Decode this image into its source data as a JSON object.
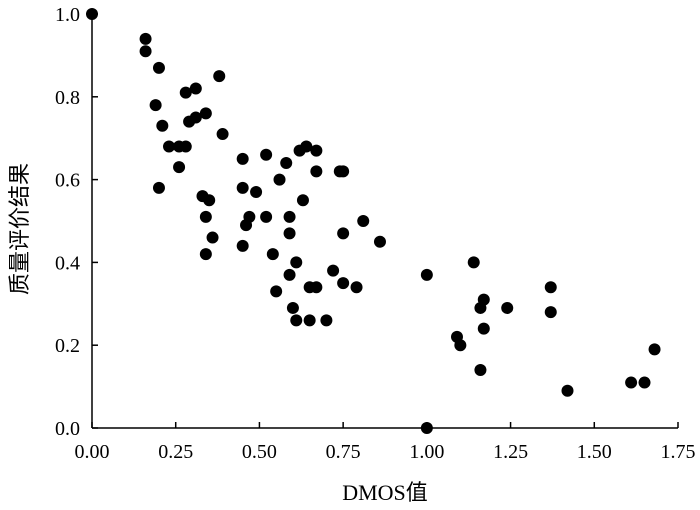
{
  "chart_data": {
    "type": "scatter",
    "title": "",
    "xlabel": "DMOS值",
    "ylabel": "质量评价结果",
    "xlim": [
      0,
      1.75
    ],
    "ylim": [
      0,
      1.0
    ],
    "xticks": [
      "0.00",
      "0.25",
      "0.50",
      "0.75",
      "1.00",
      "1.25",
      "1.50",
      "1.75"
    ],
    "yticks": [
      "0.0",
      "0.2",
      "0.4",
      "0.6",
      "0.8",
      "1.0"
    ],
    "grid": false,
    "marker_color": "#000000",
    "points": [
      [
        0.0,
        1.0
      ],
      [
        0.16,
        0.94
      ],
      [
        0.16,
        0.91
      ],
      [
        0.2,
        0.87
      ],
      [
        0.19,
        0.78
      ],
      [
        0.21,
        0.73
      ],
      [
        0.23,
        0.68
      ],
      [
        0.2,
        0.58
      ],
      [
        0.26,
        0.68
      ],
      [
        0.26,
        0.63
      ],
      [
        0.28,
        0.81
      ],
      [
        0.29,
        0.74
      ],
      [
        0.28,
        0.68
      ],
      [
        0.31,
        0.82
      ],
      [
        0.31,
        0.75
      ],
      [
        0.34,
        0.76
      ],
      [
        0.38,
        0.85
      ],
      [
        0.39,
        0.71
      ],
      [
        0.33,
        0.56
      ],
      [
        0.35,
        0.55
      ],
      [
        0.34,
        0.51
      ],
      [
        0.36,
        0.46
      ],
      [
        0.34,
        0.42
      ],
      [
        0.45,
        0.65
      ],
      [
        0.45,
        0.58
      ],
      [
        0.49,
        0.57
      ],
      [
        0.47,
        0.51
      ],
      [
        0.46,
        0.49
      ],
      [
        0.45,
        0.44
      ],
      [
        0.52,
        0.66
      ],
      [
        0.52,
        0.51
      ],
      [
        0.54,
        0.42
      ],
      [
        0.55,
        0.33
      ],
      [
        0.56,
        0.6
      ],
      [
        0.58,
        0.64
      ],
      [
        0.59,
        0.51
      ],
      [
        0.59,
        0.47
      ],
      [
        0.59,
        0.37
      ],
      [
        0.6,
        0.29
      ],
      [
        0.61,
        0.26
      ],
      [
        0.61,
        0.4
      ],
      [
        0.62,
        0.67
      ],
      [
        0.63,
        0.55
      ],
      [
        0.64,
        0.68
      ],
      [
        0.65,
        0.34
      ],
      [
        0.65,
        0.26
      ],
      [
        0.67,
        0.67
      ],
      [
        0.67,
        0.62
      ],
      [
        0.67,
        0.34
      ],
      [
        0.7,
        0.26
      ],
      [
        0.72,
        0.38
      ],
      [
        0.74,
        0.62
      ],
      [
        0.75,
        0.62
      ],
      [
        0.75,
        0.47
      ],
      [
        0.75,
        0.35
      ],
      [
        0.79,
        0.34
      ],
      [
        0.81,
        0.5
      ],
      [
        0.86,
        0.45
      ],
      [
        1.0,
        0.37
      ],
      [
        1.09,
        0.22
      ],
      [
        1.1,
        0.2
      ],
      [
        1.14,
        0.4
      ],
      [
        1.16,
        0.29
      ],
      [
        1.17,
        0.31
      ],
      [
        1.16,
        0.14
      ],
      [
        1.17,
        0.24
      ],
      [
        1.24,
        0.29
      ],
      [
        1.37,
        0.34
      ],
      [
        1.37,
        0.28
      ],
      [
        1.42,
        0.09
      ],
      [
        1.61,
        0.11
      ],
      [
        1.65,
        0.11
      ],
      [
        1.68,
        0.19
      ],
      [
        1.0,
        0.0
      ]
    ]
  }
}
